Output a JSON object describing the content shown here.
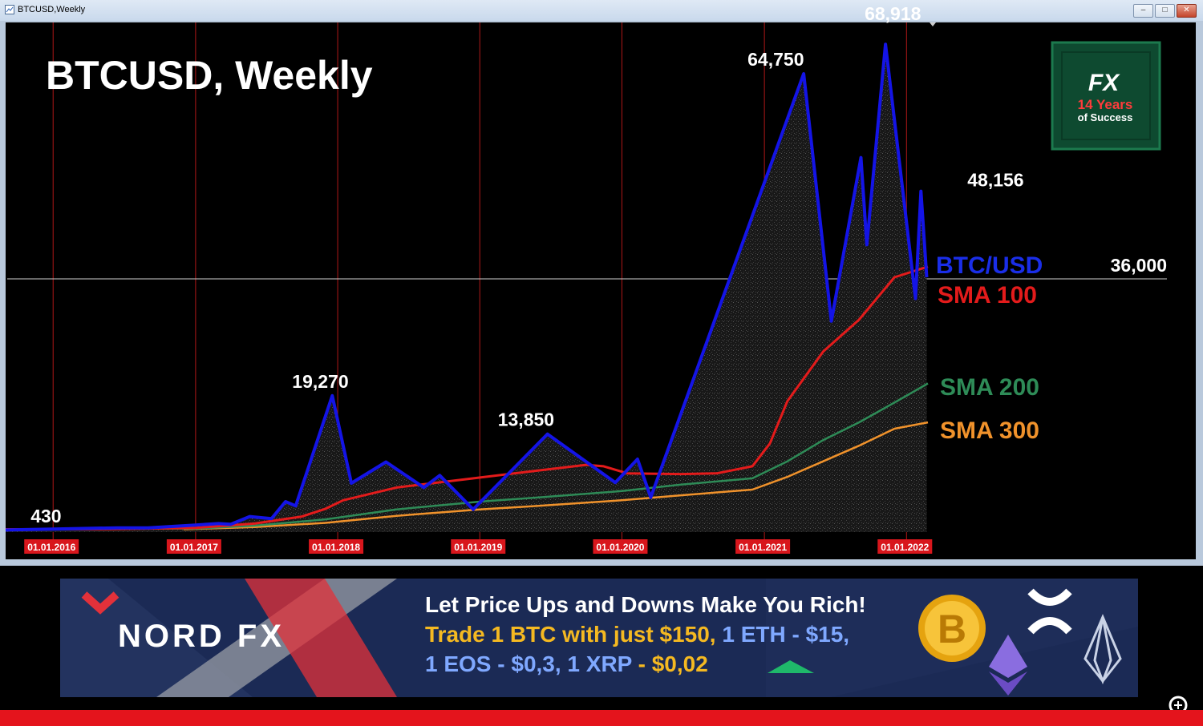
{
  "window": {
    "title": "BTCUSD,Weekly"
  },
  "chart_data": {
    "type": "line",
    "title": "BTCUSD, Weekly",
    "x_range": [
      "2015-09-01",
      "2022-02-25"
    ],
    "ylim": [
      0,
      72000
    ],
    "grid": "vertical year lines",
    "current_price": {
      "value": 36000,
      "label": "36,000"
    },
    "x_ticks": [
      {
        "date": "2016-01-01",
        "label": "01.01.2016"
      },
      {
        "date": "2017-01-01",
        "label": "01.01.2017"
      },
      {
        "date": "2018-01-01",
        "label": "01.01.2018"
      },
      {
        "date": "2019-01-01",
        "label": "01.01.2019"
      },
      {
        "date": "2020-01-01",
        "label": "01.01.2020"
      },
      {
        "date": "2021-01-01",
        "label": "01.01.2021"
      },
      {
        "date": "2022-01-01",
        "label": "01.01.2022"
      }
    ],
    "annotations": [
      {
        "date": "2016-01-01",
        "value": 430,
        "label": "430"
      },
      {
        "date": "2017-12-18",
        "value": 19270,
        "label": "19,270"
      },
      {
        "date": "2019-06-24",
        "value": 13850,
        "label": "13,850"
      },
      {
        "date": "2021-04-12",
        "value": 64750,
        "label": "64,750"
      },
      {
        "date": "2021-11-08",
        "value": 68918,
        "label": "68,918"
      },
      {
        "date": "2022-02-07",
        "value": 48156,
        "label": "48,156"
      }
    ],
    "series": [
      {
        "name": "BTC/USD",
        "color": "#1414e6",
        "points": [
          [
            "2015-09-01",
            300
          ],
          [
            "2016-01-01",
            430
          ],
          [
            "2016-06-15",
            600
          ],
          [
            "2016-09-01",
            600
          ],
          [
            "2017-01-01",
            1000
          ],
          [
            "2017-03-01",
            1200
          ],
          [
            "2017-04-01",
            1100
          ],
          [
            "2017-05-20",
            2200
          ],
          [
            "2017-07-15",
            1900
          ],
          [
            "2017-08-20",
            4300
          ],
          [
            "2017-09-15",
            3700
          ],
          [
            "2017-12-18",
            19270
          ],
          [
            "2018-02-05",
            6900
          ],
          [
            "2018-05-05",
            9900
          ],
          [
            "2018-08-10",
            6300
          ],
          [
            "2018-09-20",
            8000
          ],
          [
            "2018-12-15",
            3200
          ],
          [
            "2019-06-24",
            13850
          ],
          [
            "2019-12-15",
            7000
          ],
          [
            "2020-02-10",
            10300
          ],
          [
            "2020-03-15",
            4900
          ],
          [
            "2021-04-12",
            64750
          ],
          [
            "2021-06-22",
            29800
          ],
          [
            "2021-09-06",
            52900
          ],
          [
            "2021-09-21",
            40600
          ],
          [
            "2021-11-08",
            68918
          ],
          [
            "2022-01-24",
            33000
          ],
          [
            "2022-02-07",
            48156
          ],
          [
            "2022-02-22",
            36000
          ]
        ]
      },
      {
        "name": "SMA 100",
        "color": "#e31b1b",
        "points": [
          [
            "2015-09-01",
            400
          ],
          [
            "2016-06-01",
            420
          ],
          [
            "2017-01-01",
            600
          ],
          [
            "2017-06-01",
            1200
          ],
          [
            "2017-10-01",
            2200
          ],
          [
            "2017-12-01",
            3300
          ],
          [
            "2018-01-15",
            4500
          ],
          [
            "2018-06-01",
            6300
          ],
          [
            "2018-12-01",
            7500
          ],
          [
            "2019-06-01",
            8700
          ],
          [
            "2019-10-01",
            9500
          ],
          [
            "2019-11-15",
            9300
          ],
          [
            "2020-01-15",
            8300
          ],
          [
            "2020-06-01",
            8200
          ],
          [
            "2020-09-01",
            8300
          ],
          [
            "2020-12-01",
            9300
          ],
          [
            "2021-01-15",
            12500
          ],
          [
            "2021-03-01",
            18500
          ],
          [
            "2021-06-01",
            25500
          ],
          [
            "2021-09-01",
            30000
          ],
          [
            "2021-12-01",
            36000
          ],
          [
            "2022-02-25",
            37500
          ]
        ]
      },
      {
        "name": "SMA 200",
        "color": "#2e8b57",
        "points": [
          [
            "2015-09-01",
            400
          ],
          [
            "2017-01-01",
            500
          ],
          [
            "2017-06-01",
            900
          ],
          [
            "2017-12-01",
            1800
          ],
          [
            "2018-06-01",
            3200
          ],
          [
            "2019-01-01",
            4300
          ],
          [
            "2019-06-01",
            4900
          ],
          [
            "2020-01-01",
            5800
          ],
          [
            "2020-06-01",
            6700
          ],
          [
            "2020-12-01",
            7600
          ],
          [
            "2021-03-01",
            10000
          ],
          [
            "2021-06-01",
            13000
          ],
          [
            "2021-09-01",
            15500
          ],
          [
            "2021-12-01",
            18300
          ],
          [
            "2022-02-25",
            21000
          ]
        ]
      },
      {
        "name": "SMA 300",
        "color": "#f0922b",
        "points": [
          [
            "2016-12-01",
            400
          ],
          [
            "2017-06-01",
            700
          ],
          [
            "2017-12-01",
            1300
          ],
          [
            "2018-06-01",
            2300
          ],
          [
            "2019-01-01",
            3200
          ],
          [
            "2019-06-01",
            3700
          ],
          [
            "2020-01-01",
            4500
          ],
          [
            "2020-06-01",
            5200
          ],
          [
            "2020-12-01",
            6000
          ],
          [
            "2021-03-01",
            7800
          ],
          [
            "2021-06-01",
            10000
          ],
          [
            "2021-09-01",
            12200
          ],
          [
            "2021-12-01",
            14600
          ],
          [
            "2022-02-25",
            15500
          ]
        ]
      }
    ]
  },
  "logo": {
    "brand": "FX",
    "line1": "14 Years",
    "line2": "of Success"
  },
  "banner": {
    "brand": "NORD FX",
    "line1": "Let Price Ups and Downs Make You Rich!",
    "line2a": "Trade 1 BTC with just $150,",
    "line2b": "1 ETH - $15,",
    "line3a": "1 EOS - $0,3,",
    "line3b": "1 XRP",
    "line3c": "- $0,02",
    "coin_symbol": "B",
    "icons": [
      "bitcoin-coin-icon",
      "xrp-icon",
      "ethereum-icon",
      "eos-icon"
    ]
  },
  "colors": {
    "red": "#e4141c",
    "yellow": "#f5b921",
    "banner_bg": "#1b2a55"
  }
}
